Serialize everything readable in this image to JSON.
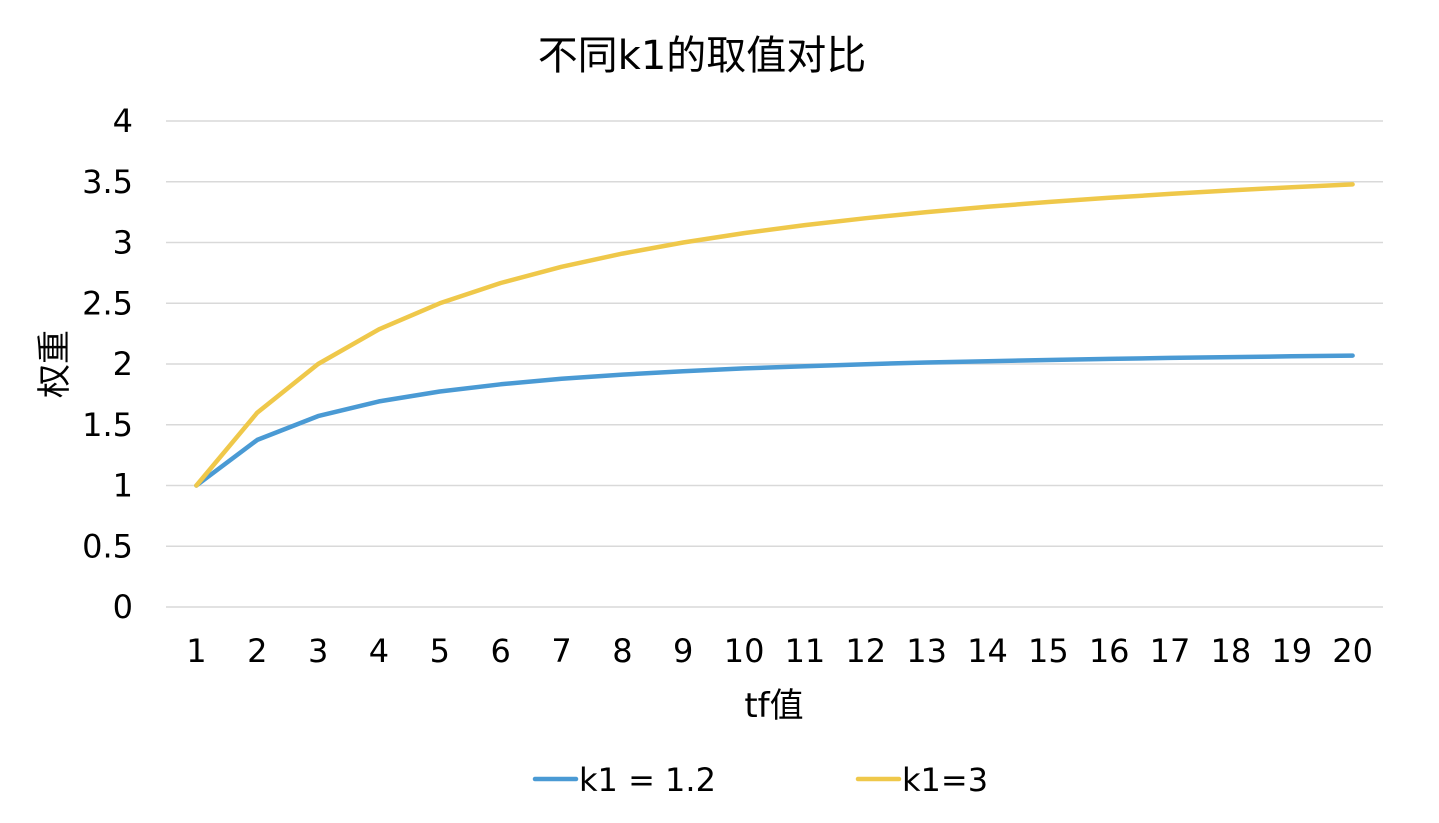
{
  "chart_data": {
    "type": "line",
    "title": "不同k1的取值对比",
    "xlabel": "tf值",
    "ylabel": "权重",
    "categories": [
      "1",
      "2",
      "3",
      "4",
      "5",
      "6",
      "7",
      "8",
      "9",
      "10",
      "11",
      "12",
      "13",
      "14",
      "15",
      "16",
      "17",
      "18",
      "19",
      "20"
    ],
    "yticks": [
      "0",
      "0.5",
      "1",
      "1.5",
      "2",
      "2.5",
      "3",
      "3.5",
      "4"
    ],
    "ylim": [
      0,
      4
    ],
    "grid": true,
    "legend_position": "bottom",
    "series": [
      {
        "name": "k1 = 1.2",
        "color": "#4a9ad4",
        "values": [
          1.0,
          1.375,
          1.571,
          1.692,
          1.774,
          1.833,
          1.878,
          1.913,
          1.941,
          1.964,
          1.982,
          1.998,
          2.012,
          2.023,
          2.033,
          2.042,
          2.05,
          2.057,
          2.063,
          2.069
        ]
      },
      {
        "name": "k1=3",
        "color": "#efc84a",
        "values": [
          1.0,
          1.6,
          2.0,
          2.286,
          2.5,
          2.667,
          2.8,
          2.909,
          3.0,
          3.077,
          3.143,
          3.2,
          3.25,
          3.294,
          3.333,
          3.368,
          3.4,
          3.429,
          3.455,
          3.478
        ]
      }
    ]
  }
}
